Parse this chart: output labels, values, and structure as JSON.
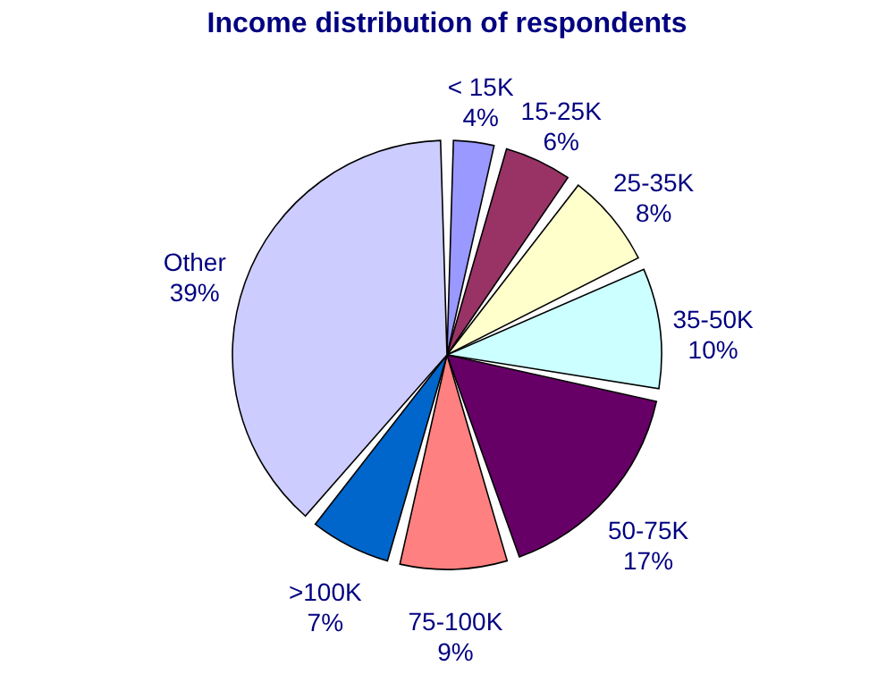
{
  "chart_data": {
    "type": "pie",
    "title": "Income distribution of respondents",
    "categories": [
      "< 15K",
      "15-25K",
      "25-35K",
      "35-50K",
      "50-75K",
      "75-100K",
      ">100K",
      "Other"
    ],
    "values": [
      4,
      6,
      8,
      10,
      17,
      9,
      7,
      39
    ],
    "value_labels": [
      "4%",
      "6%",
      "8%",
      "10%",
      "17%",
      "9%",
      "7%",
      "39%"
    ],
    "colors": [
      "#9999ff",
      "#993366",
      "#ffffcc",
      "#ccffff",
      "#660066",
      "#ff8080",
      "#0066cc",
      "#ccccff"
    ],
    "legend": false
  }
}
